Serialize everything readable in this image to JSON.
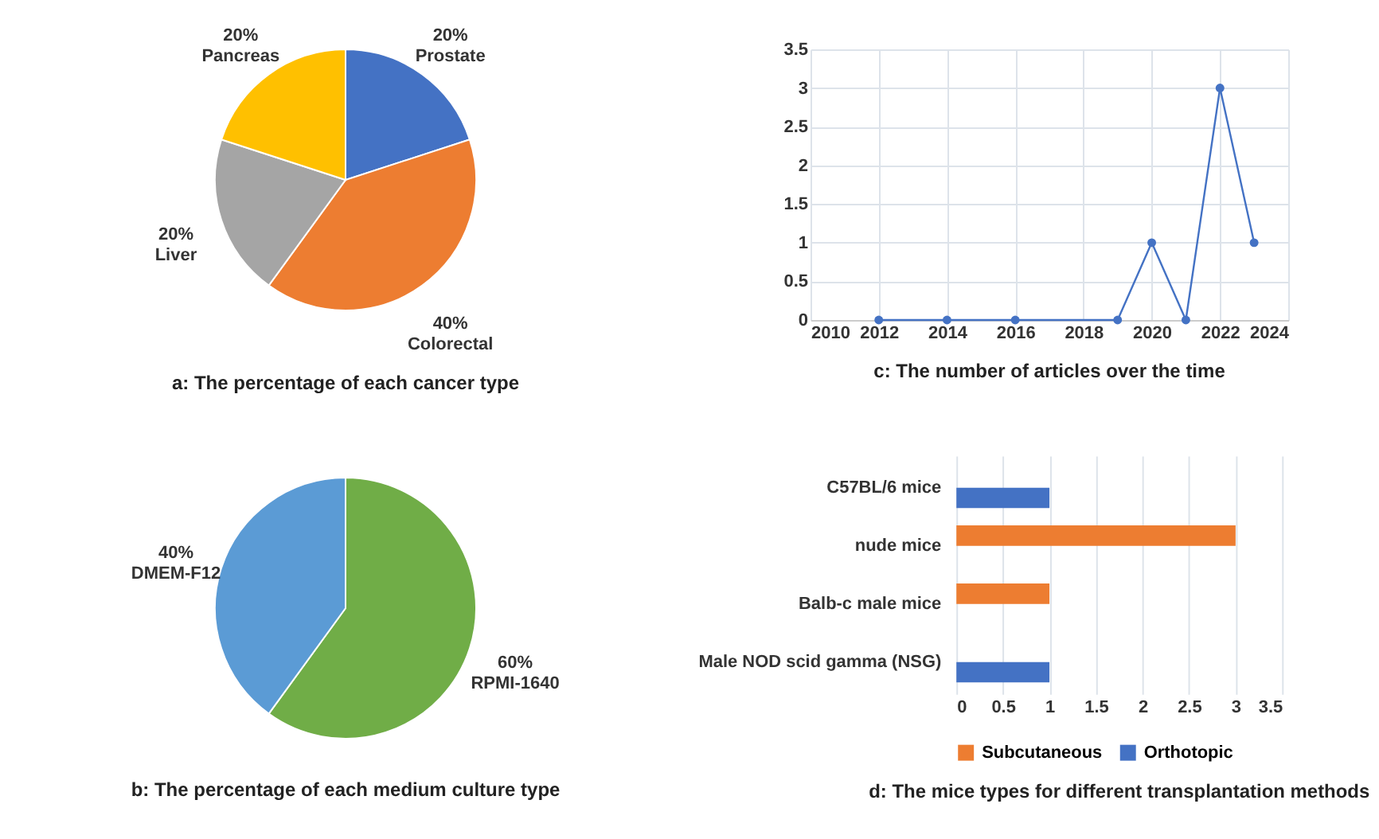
{
  "chart_data": [
    {
      "type": "pie",
      "title": "a: The percentage of each cancer type",
      "categories": [
        "Prostate",
        "Colorectal",
        "Liver",
        "Pancreas"
      ],
      "values": [
        20,
        40,
        20,
        20
      ],
      "colors": [
        "#4472c4",
        "#ed7d31",
        "#a5a5a5",
        "#ffc000"
      ],
      "value_labels": [
        "20%",
        "40%",
        "20%",
        "20%"
      ]
    },
    {
      "type": "line",
      "title": "c: The number of articles over the time",
      "x": [
        2012,
        2014,
        2016,
        2019,
        2020,
        2021,
        2022,
        2023
      ],
      "series": [
        {
          "color": "#4472c4",
          "values": [
            0,
            0,
            0,
            0,
            1,
            0,
            3,
            1
          ]
        }
      ],
      "xlim": [
        2010,
        2024
      ],
      "xticks": [
        2010,
        2012,
        2014,
        2016,
        2018,
        2020,
        2022,
        2024
      ],
      "ylim": [
        0,
        3.5
      ],
      "yticks": [
        0,
        0.5,
        1,
        1.5,
        2,
        2.5,
        3,
        3.5
      ],
      "grid": true,
      "marker": "circle",
      "line_style": "solid"
    },
    {
      "type": "pie",
      "title": "b: The percentage of each medium culture type",
      "categories": [
        "RPMI-1640",
        "DMEM-F12"
      ],
      "values": [
        60,
        40
      ],
      "colors": [
        "#70ad47",
        "#5b9bd5"
      ],
      "value_labels": [
        "60%",
        "40%"
      ]
    },
    {
      "type": "bar",
      "title": "d: The mice types for different transplantation methods",
      "orientation": "horizontal",
      "categories": [
        "C57BL/6 mice",
        "nude mice",
        "Balb-c male mice",
        "Male NOD scid gamma (NSG)"
      ],
      "series": [
        {
          "name": "Subcutaneous",
          "color": "#ed7d31",
          "values": [
            null,
            3,
            1,
            null
          ]
        },
        {
          "name": "Orthotopic",
          "color": "#4472c4",
          "values": [
            1,
            null,
            null,
            1
          ]
        }
      ],
      "xlim": [
        0,
        3.5
      ],
      "xticks": [
        0,
        0.5,
        1,
        1.5,
        2,
        2.5,
        3,
        3.5
      ],
      "grid": "x",
      "legend": "bottom"
    }
  ]
}
